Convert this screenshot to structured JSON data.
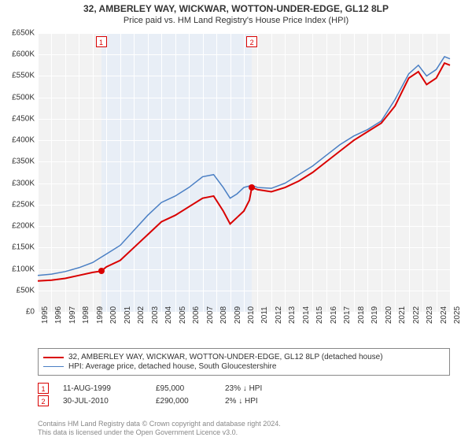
{
  "title_line1": "32, AMBERLEY WAY, WICKWAR, WOTTON-UNDER-EDGE, GL12 8LP",
  "title_line2": "Price paid vs. HM Land Registry's House Price Index (HPI)",
  "title_fontsize": 12,
  "subtitle_fontsize": 11,
  "chart": {
    "type": "line",
    "plot_bg": "#f2f2f2",
    "grid_color": "#ffffff",
    "x_years": [
      1995,
      1996,
      1997,
      1998,
      1999,
      2000,
      2001,
      2002,
      2003,
      2004,
      2005,
      2006,
      2007,
      2008,
      2009,
      2010,
      2011,
      2012,
      2013,
      2014,
      2015,
      2016,
      2017,
      2018,
      2019,
      2020,
      2021,
      2022,
      2023,
      2024,
      2025
    ],
    "xlim": [
      1995,
      2025
    ],
    "ylim": [
      0,
      650000
    ],
    "ytick_step": 50000,
    "ytick_labels": [
      "£0",
      "£50K",
      "£100K",
      "£150K",
      "£200K",
      "£250K",
      "£300K",
      "£350K",
      "£400K",
      "£450K",
      "£500K",
      "£550K",
      "£600K",
      "£650K"
    ],
    "shaded_region": {
      "x_start": 1999.61,
      "x_end": 2010.58,
      "color": "#e8eef6"
    },
    "series": [
      {
        "name": "32, AMBERLEY WAY, WICKWAR, WOTTON-UNDER-EDGE, GL12 8LP (detached house)",
        "color": "#d90000",
        "line_width": 2,
        "data": [
          [
            1995.0,
            72000
          ],
          [
            1996.0,
            74000
          ],
          [
            1997.0,
            78000
          ],
          [
            1998.0,
            85000
          ],
          [
            1999.0,
            92000
          ],
          [
            1999.61,
            95000
          ],
          [
            2000.0,
            105000
          ],
          [
            2001.0,
            120000
          ],
          [
            2002.0,
            150000
          ],
          [
            2003.0,
            180000
          ],
          [
            2004.0,
            210000
          ],
          [
            2005.0,
            225000
          ],
          [
            2006.0,
            245000
          ],
          [
            2007.0,
            265000
          ],
          [
            2007.8,
            270000
          ],
          [
            2008.5,
            235000
          ],
          [
            2009.0,
            205000
          ],
          [
            2009.5,
            220000
          ],
          [
            2010.0,
            235000
          ],
          [
            2010.4,
            260000
          ],
          [
            2010.58,
            290000
          ],
          [
            2011.0,
            285000
          ],
          [
            2012.0,
            280000
          ],
          [
            2013.0,
            290000
          ],
          [
            2014.0,
            305000
          ],
          [
            2015.0,
            325000
          ],
          [
            2016.0,
            350000
          ],
          [
            2017.0,
            375000
          ],
          [
            2018.0,
            400000
          ],
          [
            2019.0,
            420000
          ],
          [
            2020.0,
            440000
          ],
          [
            2021.0,
            480000
          ],
          [
            2022.0,
            545000
          ],
          [
            2022.7,
            560000
          ],
          [
            2023.3,
            530000
          ],
          [
            2024.0,
            545000
          ],
          [
            2024.6,
            580000
          ],
          [
            2025.0,
            575000
          ]
        ]
      },
      {
        "name": "HPI: Average price, detached house, South Gloucestershire",
        "color": "#4a7fc4",
        "line_width": 1.5,
        "data": [
          [
            1995.0,
            85000
          ],
          [
            1996.0,
            88000
          ],
          [
            1997.0,
            94000
          ],
          [
            1998.0,
            103000
          ],
          [
            1999.0,
            115000
          ],
          [
            2000.0,
            135000
          ],
          [
            2001.0,
            155000
          ],
          [
            2002.0,
            190000
          ],
          [
            2003.0,
            225000
          ],
          [
            2004.0,
            255000
          ],
          [
            2005.0,
            270000
          ],
          [
            2006.0,
            290000
          ],
          [
            2007.0,
            315000
          ],
          [
            2007.8,
            320000
          ],
          [
            2008.5,
            290000
          ],
          [
            2009.0,
            265000
          ],
          [
            2009.5,
            275000
          ],
          [
            2010.0,
            290000
          ],
          [
            2010.58,
            295000
          ],
          [
            2011.0,
            290000
          ],
          [
            2012.0,
            288000
          ],
          [
            2013.0,
            300000
          ],
          [
            2014.0,
            320000
          ],
          [
            2015.0,
            340000
          ],
          [
            2016.0,
            365000
          ],
          [
            2017.0,
            390000
          ],
          [
            2018.0,
            410000
          ],
          [
            2019.0,
            425000
          ],
          [
            2020.0,
            445000
          ],
          [
            2021.0,
            495000
          ],
          [
            2022.0,
            555000
          ],
          [
            2022.7,
            575000
          ],
          [
            2023.3,
            550000
          ],
          [
            2024.0,
            565000
          ],
          [
            2024.6,
            595000
          ],
          [
            2025.0,
            590000
          ]
        ]
      }
    ],
    "sale_points": [
      {
        "x": 1999.61,
        "y": 95000,
        "color": "#d90000"
      },
      {
        "x": 2010.58,
        "y": 290000,
        "color": "#d90000"
      }
    ],
    "top_markers": [
      {
        "x": 1999.61,
        "label": "1",
        "color": "#d90000"
      },
      {
        "x": 2010.58,
        "label": "2",
        "color": "#d90000"
      }
    ]
  },
  "legend": {
    "border_color": "#888888",
    "rows": [
      {
        "color": "#d90000",
        "width": 2,
        "label": "32, AMBERLEY WAY, WICKWAR, WOTTON-UNDER-EDGE, GL12 8LP (detached house)"
      },
      {
        "color": "#4a7fc4",
        "width": 1.5,
        "label": "HPI: Average price, detached house, South Gloucestershire"
      }
    ]
  },
  "sales": [
    {
      "num": "1",
      "color": "#d90000",
      "date": "11-AUG-1999",
      "price": "£95,000",
      "rel": "23% ↓ HPI"
    },
    {
      "num": "2",
      "color": "#d90000",
      "date": "30-JUL-2010",
      "price": "£290,000",
      "rel": "2% ↓ HPI"
    }
  ],
  "footer_line1": "Contains HM Land Registry data © Crown copyright and database right 2024.",
  "footer_line2": "This data is licensed under the Open Government Licence v3.0.",
  "footer_color": "#888888"
}
